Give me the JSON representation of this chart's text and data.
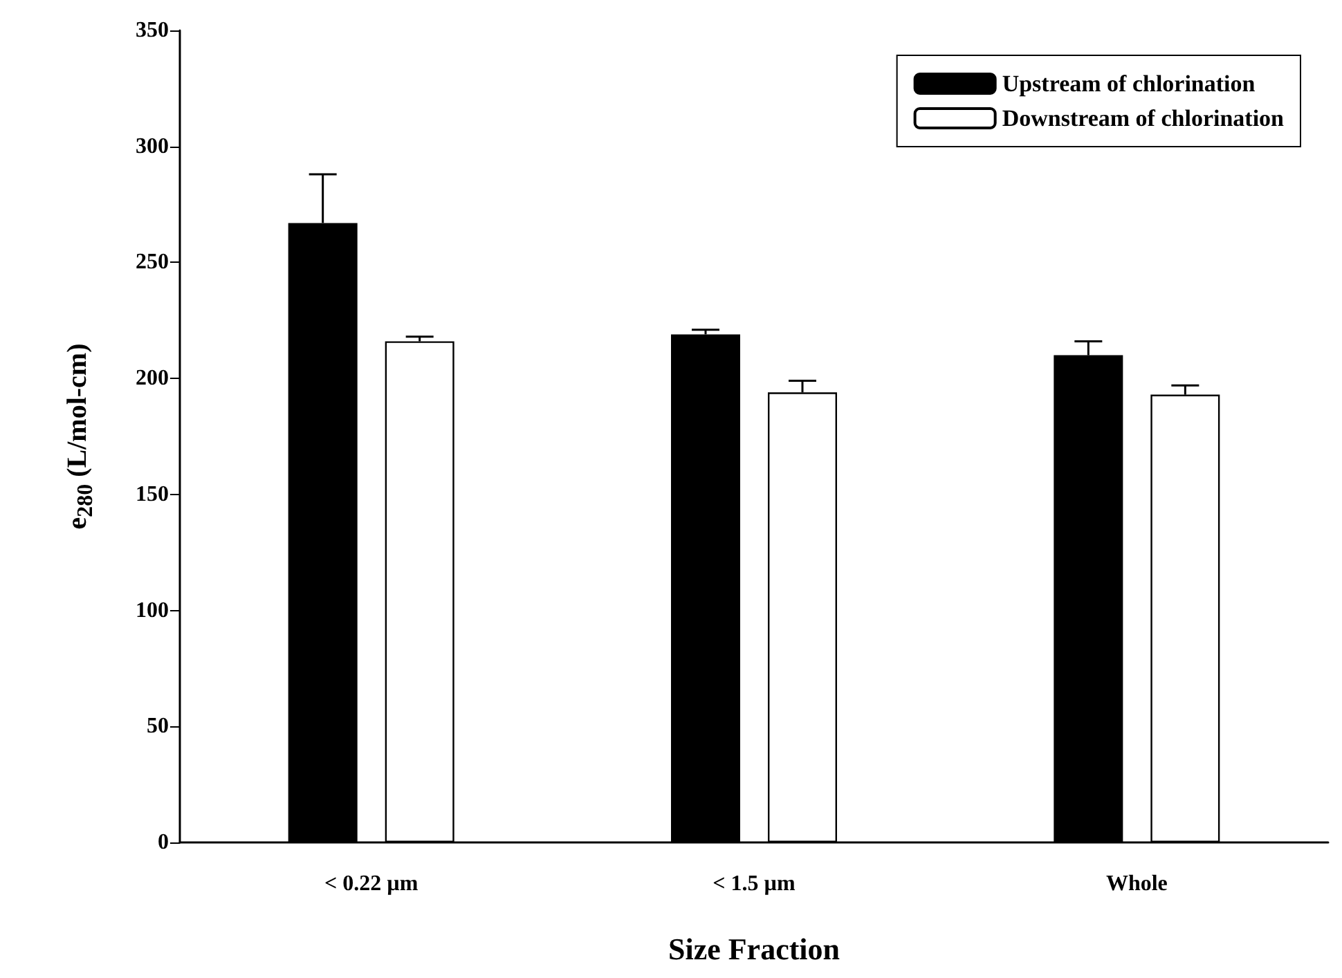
{
  "chart_data": {
    "type": "bar",
    "xlabel": "Size Fraction",
    "ylabel": "e$_{280}$ (L/mol-cm)",
    "categories": [
      "< 0.22 µm",
      "< 1.5 µm",
      "Whole"
    ],
    "series": [
      {
        "name": "Upstream of chlorination",
        "color": "#000000",
        "values": [
          267,
          219,
          210
        ],
        "errors": [
          21,
          2,
          6
        ]
      },
      {
        "name": "Downstream of chlorination",
        "color": "#ffffff",
        "values": [
          216,
          194,
          193
        ],
        "errors": [
          2,
          5,
          4
        ]
      }
    ],
    "ylim": [
      0,
      350
    ],
    "yticks": [
      0,
      50,
      100,
      150,
      200,
      250,
      300,
      350
    ],
    "grid": false,
    "legend": "top right"
  }
}
